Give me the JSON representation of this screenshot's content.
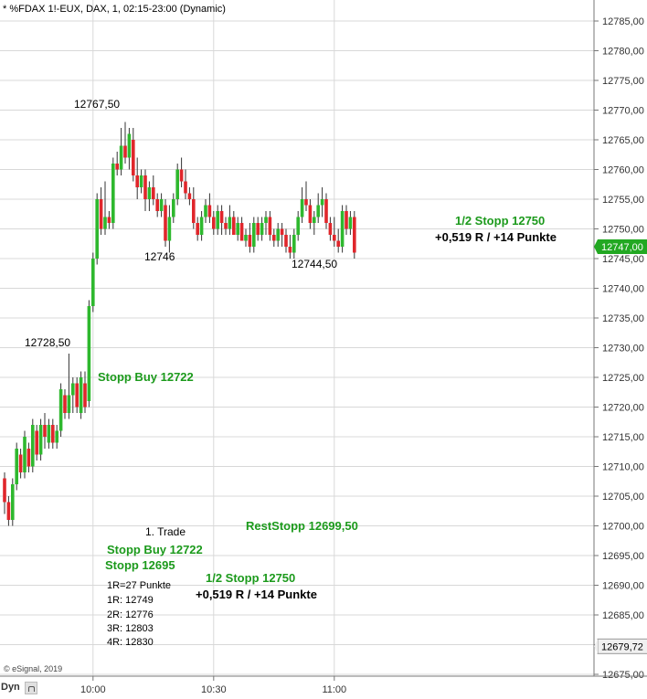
{
  "header": {
    "title": "* %FDAX 1!-EUX, DAX, 1, 02:15-23:00 (Dynamic)"
  },
  "footer": {
    "copyright": "© eSignal, 2019",
    "dyn_label": "Dyn"
  },
  "colors": {
    "up": "#2eb82e",
    "down": "#e0262b",
    "grid": "#d8d8d8",
    "axis": "#777777",
    "current_price_bg": "#22a822",
    "last_visible_bg": "#f0f0f0",
    "annotation_green": "#1c9a1c"
  },
  "chart_data": {
    "type": "candlestick",
    "instrument": "%FDAX 1!-EUX",
    "timeframe": "1",
    "session": "02:15-23:00",
    "ylim": [
      12675,
      12787
    ],
    "y_ticks": [
      "12785,00",
      "12780,00",
      "12775,00",
      "12770,00",
      "12765,00",
      "12760,00",
      "12755,00",
      "12750,00",
      "12745,00",
      "12740,00",
      "12735,00",
      "12730,00",
      "12725,00",
      "12720,00",
      "12715,00",
      "12710,00",
      "12705,00",
      "12700,00",
      "12695,00",
      "12690,00",
      "12685,00",
      "12680,00",
      "12675,00"
    ],
    "y_tick_values": [
      12785,
      12780,
      12775,
      12770,
      12765,
      12760,
      12755,
      12750,
      12745,
      12740,
      12735,
      12730,
      12725,
      12720,
      12715,
      12710,
      12705,
      12700,
      12695,
      12690,
      12685,
      12680,
      12675
    ],
    "x_ticks": [
      {
        "label": "10:00",
        "bar_index": 22
      },
      {
        "label": "10:30",
        "bar_index": 52
      },
      {
        "label": "11:00",
        "bar_index": 82
      }
    ],
    "current_price": {
      "label": "12747,00",
      "value": 12747.0
    },
    "last_visible_price": {
      "label": "12679,72",
      "value": 12679.72
    },
    "grid": true,
    "candles": [
      [
        12708,
        12709,
        12702,
        12704
      ],
      [
        12704,
        12705,
        12700,
        12701
      ],
      [
        12701,
        12708,
        12700,
        12707
      ],
      [
        12707,
        12714,
        12706,
        12713
      ],
      [
        12712,
        12713,
        12708,
        12709
      ],
      [
        12709,
        12716,
        12708,
        12715
      ],
      [
        12713,
        12714,
        12709,
        12710
      ],
      [
        12710,
        12718,
        12709,
        12717
      ],
      [
        12716,
        12717,
        12711,
        12712
      ],
      [
        12712,
        12718,
        12711,
        12717
      ],
      [
        12717,
        12719,
        12713,
        12715
      ],
      [
        12714,
        12718,
        12713,
        12717
      ],
      [
        12717,
        12718,
        12713,
        12714
      ],
      [
        12714,
        12717,
        12713,
        12716
      ],
      [
        12716,
        12724,
        12715,
        12723
      ],
      [
        12722,
        12723,
        12718,
        12719
      ],
      [
        12719,
        12729,
        12718,
        12722
      ],
      [
        12722,
        12725,
        12719,
        12724
      ],
      [
        12724,
        12725,
        12719,
        12720
      ],
      [
        12719,
        12726,
        12718,
        12725
      ],
      [
        12724,
        12726,
        12719,
        12720
      ],
      [
        12721,
        12738,
        12720,
        12737
      ],
      [
        12737,
        12746,
        12736,
        12745
      ],
      [
        12745,
        12756,
        12744,
        12755
      ],
      [
        12755,
        12757,
        12749,
        12750
      ],
      [
        12750,
        12758,
        12749,
        12752
      ],
      [
        12752,
        12753,
        12750,
        12751
      ],
      [
        12751,
        12762,
        12750,
        12761
      ],
      [
        12761,
        12763,
        12759,
        12760
      ],
      [
        12760,
        12767,
        12759,
        12764
      ],
      [
        12764,
        12768,
        12761,
        12762
      ],
      [
        12762,
        12767,
        12760,
        12766
      ],
      [
        12765,
        12767,
        12758,
        12759
      ],
      [
        12759,
        12762,
        12755,
        12757
      ],
      [
        12757,
        12760,
        12756,
        12759
      ],
      [
        12759,
        12760,
        12753,
        12755
      ],
      [
        12755,
        12758,
        12753,
        12757
      ],
      [
        12757,
        12759,
        12754,
        12755
      ],
      [
        12755,
        12756,
        12752,
        12753
      ],
      [
        12753,
        12756,
        12752,
        12755
      ],
      [
        12754,
        12755,
        12747,
        12748
      ],
      [
        12748,
        12754,
        12746,
        12752
      ],
      [
        12752,
        12756,
        12751,
        12755
      ],
      [
        12755,
        12761,
        12754,
        12760
      ],
      [
        12760,
        12762,
        12757,
        12758
      ],
      [
        12758,
        12760,
        12755,
        12756
      ],
      [
        12756,
        12757,
        12754,
        12755
      ],
      [
        12755,
        12757,
        12750,
        12751
      ],
      [
        12751,
        12752,
        12748,
        12749
      ],
      [
        12749,
        12753,
        12748,
        12752
      ],
      [
        12752,
        12755,
        12751,
        12754
      ],
      [
        12754,
        12756,
        12751,
        12752
      ],
      [
        12752,
        12753,
        12749,
        12750
      ],
      [
        12750,
        12754,
        12749,
        12753
      ],
      [
        12753,
        12754,
        12749,
        12751
      ],
      [
        12751,
        12752,
        12749,
        12750
      ],
      [
        12750,
        12754,
        12749,
        12752
      ],
      [
        12752,
        12753,
        12749,
        12749
      ],
      [
        12749,
        12752,
        12748,
        12751
      ],
      [
        12751,
        12752,
        12748,
        12748
      ],
      [
        12748,
        12750,
        12747,
        12749
      ],
      [
        12749,
        12751,
        12746,
        12747
      ],
      [
        12747,
        12752,
        12746,
        12751
      ],
      [
        12751,
        12752,
        12748,
        12749
      ],
      [
        12749,
        12752,
        12748,
        12751
      ],
      [
        12751,
        12753,
        12749,
        12752
      ],
      [
        12752,
        12753,
        12748,
        12749
      ],
      [
        12749,
        12750,
        12747,
        12748
      ],
      [
        12748,
        12751,
        12747,
        12750
      ],
      [
        12750,
        12751,
        12747,
        12749
      ],
      [
        12749,
        12750,
        12746,
        12747
      ],
      [
        12747,
        12749,
        12745,
        12746
      ],
      [
        12746,
        12750,
        12745,
        12749
      ],
      [
        12749,
        12753,
        12748,
        12752
      ],
      [
        12752,
        12757,
        12751,
        12755
      ],
      [
        12755,
        12758,
        12753,
        12754
      ],
      [
        12754,
        12755,
        12750,
        12751
      ],
      [
        12751,
        12753,
        12749,
        12752
      ],
      [
        12752,
        12756,
        12751,
        12754
      ],
      [
        12754,
        12757,
        12752,
        12755
      ],
      [
        12755,
        12756,
        12750,
        12751
      ],
      [
        12751,
        12752,
        12748,
        12749
      ],
      [
        12749,
        12752,
        12747,
        12748
      ],
      [
        12748,
        12750,
        12746,
        12747
      ],
      [
        12747,
        12754,
        12746,
        12753
      ],
      [
        12753,
        12754,
        12749,
        12750
      ],
      [
        12750,
        12753,
        12749,
        12752
      ],
      [
        12752,
        12753,
        12745,
        12746
      ]
    ],
    "price_labels": [
      {
        "text": "12767,50",
        "value": 12767.5
      },
      {
        "text": "12746",
        "value": 12746
      },
      {
        "text": "12744,50",
        "value": 12744.5
      },
      {
        "text": "12728,50",
        "value": 12728.5
      }
    ],
    "annotations": [
      {
        "text": "1/2 Stopp 12750",
        "color": "green",
        "bold": true
      },
      {
        "text": "+0,519 R / +14 Punkte",
        "color": "black",
        "bold": true
      },
      {
        "text": "Stopp Buy 12722",
        "color": "green",
        "bold": true
      },
      {
        "text": "RestStopp 12699,50",
        "color": "green",
        "bold": true
      },
      {
        "text": "1. Trade",
        "color": "black",
        "bold": false
      },
      {
        "text": "Stopp Buy 12722",
        "color": "green",
        "bold": true
      },
      {
        "text": "Stopp 12695",
        "color": "green",
        "bold": true
      },
      {
        "text": "1/2 Stopp 12750",
        "color": "green",
        "bold": true
      },
      {
        "text": "+0,519 R / +14 Punkte",
        "color": "black",
        "bold": true
      }
    ],
    "trade_plan": [
      "1R=27 Punkte",
      "1R: 12749",
      "2R: 12776",
      "3R: 12803",
      "4R: 12830"
    ]
  }
}
